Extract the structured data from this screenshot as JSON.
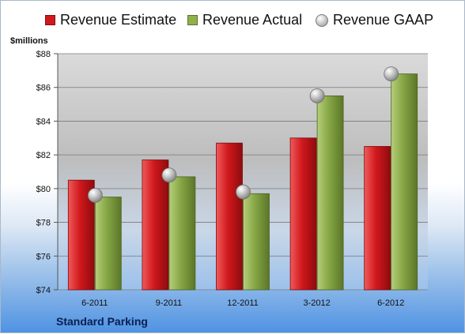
{
  "chart_data": {
    "type": "bar",
    "categories": [
      "6-2011",
      "9-2011",
      "12-2011",
      "3-2012",
      "6-2012"
    ],
    "series": [
      {
        "name": "Revenue Estimate",
        "kind": "bar",
        "color": "#d0181c",
        "values": [
          80.5,
          81.7,
          82.7,
          83.0,
          82.5
        ]
      },
      {
        "name": "Revenue Actual",
        "kind": "bar",
        "color": "#7f9f3a",
        "values": [
          79.5,
          80.7,
          79.7,
          85.5,
          86.8
        ]
      },
      {
        "name": "Revenue GAAP",
        "kind": "marker",
        "color": "#a8a8a8",
        "values": [
          79.6,
          80.8,
          79.8,
          85.5,
          86.8
        ]
      }
    ],
    "ylabel": "$millions",
    "ylim": [
      74,
      88
    ],
    "yticks": [
      "$74",
      "$76",
      "$78",
      "$80",
      "$82",
      "$84",
      "$86",
      "$88"
    ],
    "grid": true,
    "legend_position": "top",
    "company": "Standard Parking"
  }
}
